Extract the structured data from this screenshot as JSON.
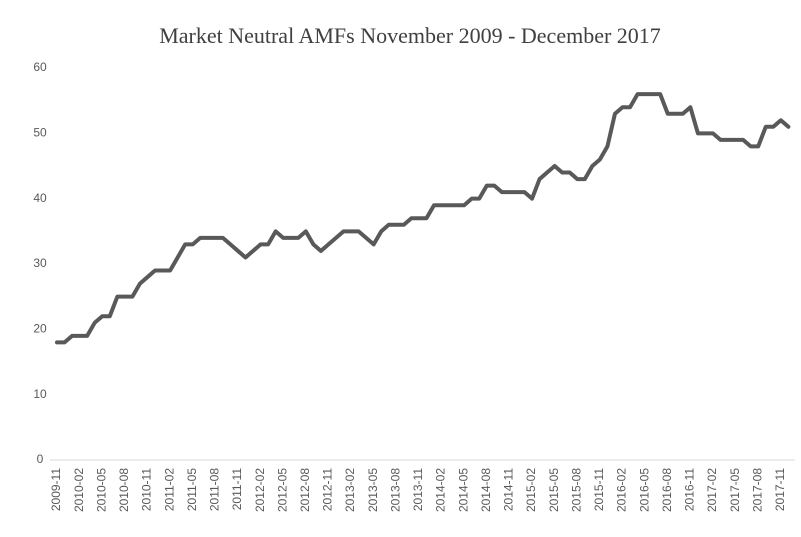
{
  "chart_data": {
    "type": "line",
    "title": "Market Neutral AMFs November 2009 - December 2017",
    "categories": [
      "2009-11",
      null,
      null,
      "2010-02",
      null,
      null,
      "2010-05",
      null,
      null,
      "2010-08",
      null,
      null,
      "2010-11",
      null,
      null,
      "2011-02",
      null,
      null,
      "2011-05",
      null,
      null,
      "2011-08",
      null,
      null,
      "2011-11",
      null,
      null,
      "2012-02",
      null,
      null,
      "2012-05",
      null,
      null,
      "2012-08",
      null,
      null,
      "2012-11",
      null,
      null,
      "2013-02",
      null,
      null,
      "2013-05",
      null,
      null,
      "2013-08",
      null,
      null,
      "2013-11",
      null,
      null,
      "2014-02",
      null,
      null,
      "2014-05",
      null,
      null,
      "2014-08",
      null,
      null,
      "2014-11",
      null,
      null,
      "2015-02",
      null,
      null,
      "2015-05",
      null,
      null,
      "2015-08",
      null,
      null,
      "2015-11",
      null,
      null,
      "2016-02",
      null,
      null,
      "2016-05",
      null,
      null,
      "2016-08",
      null,
      null,
      "2016-11",
      null,
      null,
      "2017-02",
      null,
      null,
      "2017-05",
      null,
      null,
      "2017-08",
      null,
      null,
      "2017-11",
      null
    ],
    "values": [
      18,
      18,
      19,
      19,
      19,
      21,
      22,
      22,
      25,
      25,
      25,
      27,
      28,
      29,
      29,
      29,
      31,
      33,
      33,
      34,
      34,
      34,
      34,
      33,
      32,
      31,
      32,
      33,
      33,
      35,
      34,
      34,
      34,
      35,
      33,
      32,
      33,
      34,
      35,
      35,
      35,
      34,
      33,
      35,
      36,
      36,
      36,
      37,
      37,
      37,
      39,
      39,
      39,
      39,
      39,
      40,
      40,
      42,
      42,
      41,
      41,
      41,
      41,
      40,
      43,
      44,
      45,
      44,
      44,
      43,
      43,
      45,
      46,
      48,
      53,
      54,
      54,
      56,
      56,
      56,
      56,
      53,
      53,
      53,
      54,
      50,
      50,
      50,
      49,
      49,
      49,
      49,
      48,
      48,
      51,
      51,
      52,
      51
    ],
    "color": "#595959",
    "ylim": [
      0,
      60
    ],
    "yticks": [
      0,
      10,
      20,
      30,
      40,
      50,
      60
    ],
    "grid": false
  }
}
